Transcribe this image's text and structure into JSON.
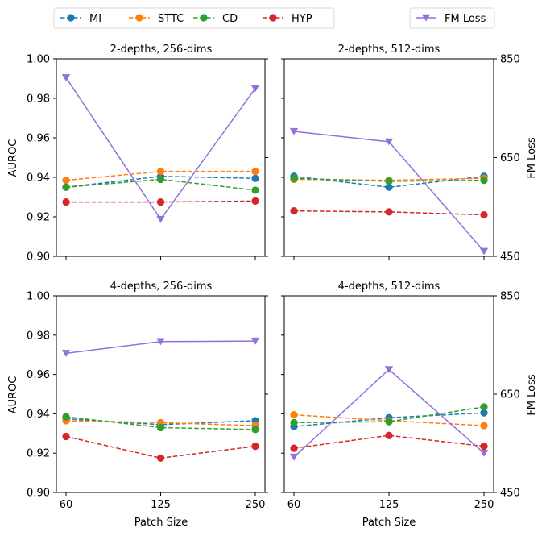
{
  "legend": {
    "left": [
      "MI",
      "STTC",
      "CD",
      "HYP"
    ],
    "right": [
      "FM Loss"
    ]
  },
  "chart_data": [
    {
      "type": "line",
      "title": "2-depths, 256-dims",
      "x": [
        60,
        125,
        250
      ],
      "xlabel": "",
      "ylabel": "AUROC",
      "ylim": [
        0.9,
        1.0
      ],
      "yticks": [
        "0.90",
        "0.92",
        "0.94",
        "0.96",
        "0.98",
        "1.00"
      ],
      "y2label": "",
      "y2lim": [
        450,
        850
      ],
      "y2ticks": [],
      "series": [
        {
          "name": "MI",
          "color": "#1f77b4",
          "style": "dashed",
          "marker": "circle",
          "axis": "left",
          "values": [
            0.935,
            0.9405,
            0.9395
          ]
        },
        {
          "name": "STTC",
          "color": "#ff7f0e",
          "style": "dashed",
          "marker": "circle",
          "axis": "left",
          "values": [
            0.9385,
            0.943,
            0.943
          ]
        },
        {
          "name": "CD",
          "color": "#2ca02c",
          "style": "dashed",
          "marker": "circle",
          "axis": "left",
          "values": [
            0.935,
            0.939,
            0.9335
          ]
        },
        {
          "name": "HYP",
          "color": "#d62728",
          "style": "dashed",
          "marker": "circle",
          "axis": "left",
          "values": [
            0.9275,
            0.9275,
            0.928
          ]
        },
        {
          "name": "FM Loss",
          "color": "#9370db",
          "style": "solid",
          "marker": "triangle-down",
          "axis": "right",
          "values": [
            812,
            525,
            790
          ]
        }
      ]
    },
    {
      "type": "line",
      "title": "2-depths, 512-dims",
      "x": [
        60,
        125,
        250
      ],
      "xlabel": "",
      "ylabel": "",
      "ylim": [
        0.9,
        1.0
      ],
      "yticks": [],
      "y2label": "FM Loss",
      "y2lim": [
        450,
        850
      ],
      "y2ticks": [
        "450",
        "650",
        "850"
      ],
      "series": [
        {
          "name": "MI",
          "color": "#1f77b4",
          "style": "dashed",
          "marker": "circle",
          "axis": "left",
          "values": [
            0.9405,
            0.935,
            0.9405
          ]
        },
        {
          "name": "STTC",
          "color": "#ff7f0e",
          "style": "dashed",
          "marker": "circle",
          "axis": "left",
          "values": [
            0.939,
            0.9385,
            0.9395
          ]
        },
        {
          "name": "CD",
          "color": "#2ca02c",
          "style": "dashed",
          "marker": "circle",
          "axis": "left",
          "values": [
            0.9395,
            0.938,
            0.9385
          ]
        },
        {
          "name": "HYP",
          "color": "#d62728",
          "style": "dashed",
          "marker": "circle",
          "axis": "left",
          "values": [
            0.923,
            0.9225,
            0.921
          ]
        },
        {
          "name": "FM Loss",
          "color": "#9370db",
          "style": "solid",
          "marker": "triangle-down",
          "axis": "right",
          "values": [
            703,
            682,
            460
          ]
        }
      ]
    },
    {
      "type": "line",
      "title": "4-depths, 256-dims",
      "x": [
        60,
        125,
        250
      ],
      "xlabel": "Patch Size",
      "xticks": [
        "60",
        "125",
        "250"
      ],
      "ylabel": "AUROC",
      "ylim": [
        0.9,
        1.0
      ],
      "yticks": [
        "0.90",
        "0.92",
        "0.94",
        "0.96",
        "0.98",
        "1.00"
      ],
      "y2label": "",
      "y2lim": [
        450,
        850
      ],
      "y2ticks": [],
      "series": [
        {
          "name": "MI",
          "color": "#1f77b4",
          "style": "dashed",
          "marker": "circle",
          "axis": "left",
          "values": [
            0.9375,
            0.9345,
            0.9365
          ]
        },
        {
          "name": "STTC",
          "color": "#ff7f0e",
          "style": "dashed",
          "marker": "circle",
          "axis": "left",
          "values": [
            0.9365,
            0.9355,
            0.934
          ]
        },
        {
          "name": "CD",
          "color": "#2ca02c",
          "style": "dashed",
          "marker": "circle",
          "axis": "left",
          "values": [
            0.9385,
            0.933,
            0.932
          ]
        },
        {
          "name": "HYP",
          "color": "#d62728",
          "style": "dashed",
          "marker": "circle",
          "axis": "left",
          "values": [
            0.9285,
            0.9175,
            0.9235
          ]
        },
        {
          "name": "FM Loss",
          "color": "#9370db",
          "style": "solid",
          "marker": "triangle-down",
          "axis": "right",
          "values": [
            733,
            757,
            758
          ]
        }
      ]
    },
    {
      "type": "line",
      "title": "4-depths, 512-dims",
      "x": [
        60,
        125,
        250
      ],
      "xlabel": "Patch Size",
      "xticks": [
        "60",
        "125",
        "250"
      ],
      "ylabel": "",
      "ylim": [
        0.9,
        1.0
      ],
      "yticks": [],
      "y2label": "FM Loss",
      "y2lim": [
        450,
        850
      ],
      "y2ticks": [
        "450",
        "650",
        "850"
      ],
      "series": [
        {
          "name": "MI",
          "color": "#1f77b4",
          "style": "dashed",
          "marker": "circle",
          "axis": "left",
          "values": [
            0.9335,
            0.938,
            0.9405
          ]
        },
        {
          "name": "STTC",
          "color": "#ff7f0e",
          "style": "dashed",
          "marker": "circle",
          "axis": "left",
          "values": [
            0.9395,
            0.9365,
            0.934
          ]
        },
        {
          "name": "CD",
          "color": "#2ca02c",
          "style": "dashed",
          "marker": "circle",
          "axis": "left",
          "values": [
            0.9355,
            0.936,
            0.9435
          ]
        },
        {
          "name": "HYP",
          "color": "#d62728",
          "style": "dashed",
          "marker": "circle",
          "axis": "left",
          "values": [
            0.9225,
            0.929,
            0.9235
          ]
        },
        {
          "name": "FM Loss",
          "color": "#9370db",
          "style": "solid",
          "marker": "triangle-down",
          "axis": "right",
          "values": [
            522,
            700,
            530
          ]
        }
      ]
    }
  ]
}
